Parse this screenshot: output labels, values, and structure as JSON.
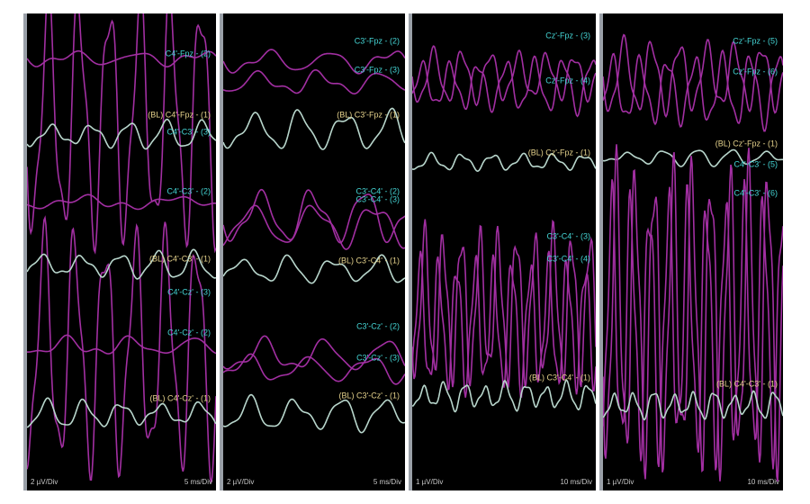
{
  "panels": [
    {
      "labels": [
        {
          "text": "C4'-Fpz - (2)",
          "color": "#45d6d6"
        },
        {
          "text": "(BL) C4'-Fpz - (1)",
          "color": "#e6d38c"
        },
        {
          "text": "C4'-C3' - (3)",
          "color": "#45d6d6"
        },
        {
          "text": "C4'-C3' - (2)",
          "color": "#45d6d6"
        },
        {
          "text": "(BL) C4'-C3' - (1)",
          "color": "#e6d38c"
        },
        {
          "text": "C4'-Cz' - (3)",
          "color": "#45d6d6"
        },
        {
          "text": "C4'-Cz' - (2)",
          "color": "#45d6d6"
        },
        {
          "text": "(BL) C4'-Cz' - (1)",
          "color": "#e6d38c"
        }
      ],
      "footer_left": "2 µV/Div",
      "footer_right": "5 ms/Div"
    },
    {
      "labels": [
        {
          "text": "C3'-Fpz - (2)",
          "color": "#45d6d6"
        },
        {
          "text": "C3'-Fpz - (3)",
          "color": "#45d6d6"
        },
        {
          "text": "(BL) C3'-Fpz - (1)",
          "color": "#e6d38c"
        },
        {
          "text": "C3'-C4' - (2)",
          "color": "#45d6d6"
        },
        {
          "text": "C3'-C4' - (3)",
          "color": "#45d6d6"
        },
        {
          "text": "(BL) C3'-C4' - (1)",
          "color": "#e6d38c"
        },
        {
          "text": "C3'-Cz' - (2)",
          "color": "#45d6d6"
        },
        {
          "text": "C3'-Cz' - (3)",
          "color": "#45d6d6"
        },
        {
          "text": "(BL) C3'-Cz' - (1)",
          "color": "#e6d38c"
        }
      ],
      "footer_left": "2 µV/Div",
      "footer_right": "5 ms/Div"
    },
    {
      "labels": [
        {
          "text": "Cz'-Fpz - (3)",
          "color": "#45d6d6"
        },
        {
          "text": "Cz'-Fpz - (4)",
          "color": "#45d6d6"
        },
        {
          "text": "(BL) Cz'-Fpz - (1)",
          "color": "#e6d38c"
        },
        {
          "text": "C3'-C4' - (3)",
          "color": "#45d6d6"
        },
        {
          "text": "C3'-C4' - (4)",
          "color": "#45d6d6"
        },
        {
          "text": "(BL) C3'-C4' - (1)",
          "color": "#e6d38c"
        }
      ],
      "footer_left": "1 µV/Div",
      "footer_right": "10 ms/Div"
    },
    {
      "labels": [
        {
          "text": "Cz'-Fpz - (5)",
          "color": "#45d6d6"
        },
        {
          "text": "Cz'-Fpz - (6)",
          "color": "#45d6d6"
        },
        {
          "text": "(BL) Cz'-Fpz - (1)",
          "color": "#e6d38c"
        },
        {
          "text": "C4'-C3' - (5)",
          "color": "#45d6d6"
        },
        {
          "text": "C4'-C3' - (6)",
          "color": "#45d6d6"
        },
        {
          "text": "(BL) C4'-C3' - (1)",
          "color": "#e6d38c"
        }
      ],
      "footer_left": "1 µV/Div",
      "footer_right": "10 ms/Div"
    }
  ]
}
